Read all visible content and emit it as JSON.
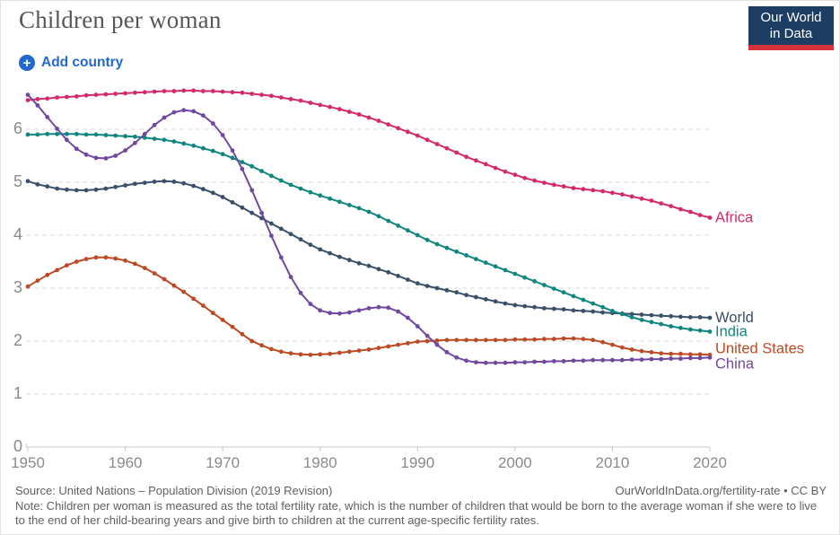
{
  "header": {
    "title": "Children per woman",
    "logo": {
      "line1": "Our World",
      "line2": "in Data"
    }
  },
  "controls": {
    "add_country_label": "Add country",
    "plus_glyph": "+"
  },
  "colors": {
    "accent_blue": "#2368cc",
    "logo_navy": "#1d3d63",
    "logo_red": "#d7323c",
    "grid": "#d8d8d8",
    "axis": "#c8c8c8",
    "tick_label": "#8a8a8a"
  },
  "chart_data": {
    "type": "line",
    "title": "Children per woman",
    "xlabel": "",
    "ylabel": "",
    "ylim": [
      0,
      6.8
    ],
    "yticks": [
      0,
      1,
      2,
      3,
      4,
      5,
      6
    ],
    "xticks": [
      1950,
      1960,
      1970,
      1980,
      1990,
      2000,
      2010,
      2020
    ],
    "grid": "horizontal-dashed",
    "legend_position": "line-end-labels",
    "markers": "yearly-dots",
    "x": [
      1950,
      1951,
      1952,
      1953,
      1954,
      1955,
      1956,
      1957,
      1958,
      1959,
      1960,
      1961,
      1962,
      1963,
      1964,
      1965,
      1966,
      1967,
      1968,
      1969,
      1970,
      1971,
      1972,
      1973,
      1974,
      1975,
      1976,
      1977,
      1978,
      1979,
      1980,
      1981,
      1982,
      1983,
      1984,
      1985,
      1986,
      1987,
      1988,
      1989,
      1990,
      1991,
      1992,
      1993,
      1994,
      1995,
      1996,
      1997,
      1998,
      1999,
      2000,
      2001,
      2002,
      2003,
      2004,
      2005,
      2006,
      2007,
      2008,
      2009,
      2010,
      2011,
      2012,
      2013,
      2014,
      2015,
      2016,
      2017,
      2018,
      2019,
      2020
    ],
    "series": [
      {
        "name": "Africa",
        "color": "#d42a6b",
        "values": [
          6.55,
          6.57,
          6.58,
          6.6,
          6.61,
          6.62,
          6.64,
          6.65,
          6.66,
          6.67,
          6.68,
          6.69,
          6.7,
          6.71,
          6.72,
          6.72,
          6.73,
          6.73,
          6.72,
          6.72,
          6.71,
          6.7,
          6.69,
          6.67,
          6.65,
          6.63,
          6.6,
          6.57,
          6.54,
          6.5,
          6.46,
          6.42,
          6.38,
          6.33,
          6.28,
          6.22,
          6.16,
          6.09,
          6.02,
          5.95,
          5.88,
          5.8,
          5.72,
          5.64,
          5.56,
          5.48,
          5.41,
          5.34,
          5.27,
          5.2,
          5.14,
          5.08,
          5.03,
          4.99,
          4.95,
          4.92,
          4.89,
          4.87,
          4.85,
          4.83,
          4.8,
          4.77,
          4.73,
          4.69,
          4.65,
          4.6,
          4.55,
          4.49,
          4.44,
          4.38,
          4.33
        ]
      },
      {
        "name": "World",
        "color": "#3a4f68",
        "values": [
          5.02,
          4.96,
          4.92,
          4.88,
          4.86,
          4.85,
          4.85,
          4.86,
          4.88,
          4.91,
          4.94,
          4.97,
          4.99,
          5.01,
          5.02,
          5.01,
          4.98,
          4.93,
          4.87,
          4.8,
          4.72,
          4.62,
          4.52,
          4.42,
          4.32,
          4.22,
          4.12,
          4.02,
          3.92,
          3.82,
          3.73,
          3.66,
          3.59,
          3.53,
          3.47,
          3.42,
          3.36,
          3.3,
          3.23,
          3.16,
          3.09,
          3.04,
          3.0,
          2.96,
          2.92,
          2.87,
          2.83,
          2.79,
          2.75,
          2.71,
          2.68,
          2.66,
          2.64,
          2.62,
          2.61,
          2.6,
          2.58,
          2.57,
          2.56,
          2.54,
          2.53,
          2.52,
          2.51,
          2.5,
          2.49,
          2.48,
          2.47,
          2.46,
          2.45,
          2.45,
          2.44
        ]
      },
      {
        "name": "India",
        "color": "#0f867e",
        "values": [
          5.9,
          5.9,
          5.91,
          5.91,
          5.91,
          5.91,
          5.9,
          5.9,
          5.89,
          5.88,
          5.87,
          5.86,
          5.84,
          5.82,
          5.8,
          5.77,
          5.73,
          5.69,
          5.64,
          5.59,
          5.53,
          5.46,
          5.38,
          5.3,
          5.21,
          5.12,
          5.03,
          4.95,
          4.88,
          4.81,
          4.75,
          4.69,
          4.63,
          4.57,
          4.51,
          4.44,
          4.36,
          4.27,
          4.18,
          4.09,
          4.0,
          3.91,
          3.83,
          3.76,
          3.69,
          3.62,
          3.55,
          3.48,
          3.41,
          3.34,
          3.27,
          3.2,
          3.13,
          3.06,
          2.99,
          2.92,
          2.85,
          2.78,
          2.71,
          2.64,
          2.57,
          2.51,
          2.45,
          2.4,
          2.36,
          2.32,
          2.28,
          2.25,
          2.22,
          2.2,
          2.18
        ]
      },
      {
        "name": "United States",
        "color": "#bc4a24",
        "values": [
          3.03,
          3.14,
          3.25,
          3.34,
          3.43,
          3.5,
          3.55,
          3.58,
          3.58,
          3.56,
          3.52,
          3.46,
          3.38,
          3.28,
          3.17,
          3.05,
          2.93,
          2.8,
          2.67,
          2.53,
          2.4,
          2.27,
          2.13,
          2.0,
          1.92,
          1.85,
          1.8,
          1.77,
          1.75,
          1.74,
          1.75,
          1.76,
          1.78,
          1.8,
          1.82,
          1.84,
          1.87,
          1.9,
          1.93,
          1.96,
          1.99,
          2.0,
          2.01,
          2.02,
          2.02,
          2.02,
          2.02,
          2.02,
          2.02,
          2.02,
          2.03,
          2.03,
          2.03,
          2.04,
          2.04,
          2.05,
          2.05,
          2.04,
          2.02,
          1.98,
          1.93,
          1.88,
          1.84,
          1.81,
          1.79,
          1.77,
          1.76,
          1.76,
          1.75,
          1.75,
          1.74
        ]
      },
      {
        "name": "China",
        "color": "#7148a0",
        "values": [
          6.65,
          6.45,
          6.23,
          6.01,
          5.8,
          5.63,
          5.52,
          5.46,
          5.45,
          5.5,
          5.6,
          5.74,
          5.91,
          6.08,
          6.22,
          6.32,
          6.36,
          6.34,
          6.26,
          6.11,
          5.89,
          5.6,
          5.25,
          4.85,
          4.42,
          3.99,
          3.58,
          3.21,
          2.91,
          2.7,
          2.58,
          2.53,
          2.52,
          2.54,
          2.58,
          2.62,
          2.64,
          2.63,
          2.56,
          2.44,
          2.28,
          2.1,
          1.93,
          1.79,
          1.69,
          1.63,
          1.6,
          1.59,
          1.59,
          1.59,
          1.6,
          1.6,
          1.61,
          1.61,
          1.62,
          1.62,
          1.63,
          1.63,
          1.64,
          1.64,
          1.64,
          1.64,
          1.65,
          1.65,
          1.66,
          1.66,
          1.67,
          1.67,
          1.68,
          1.68,
          1.69
        ]
      }
    ]
  },
  "footer": {
    "source": "Source: United Nations – Population Division (2019 Revision)",
    "link": "OurWorldInData.org/fertility-rate • CC BY",
    "note": "Note: Children per woman is measured as the total fertility rate, which is the number of children that would be born to the average woman if she were to live to the end of her child-bearing years and give birth to children at the current age-specific fertility rates."
  }
}
